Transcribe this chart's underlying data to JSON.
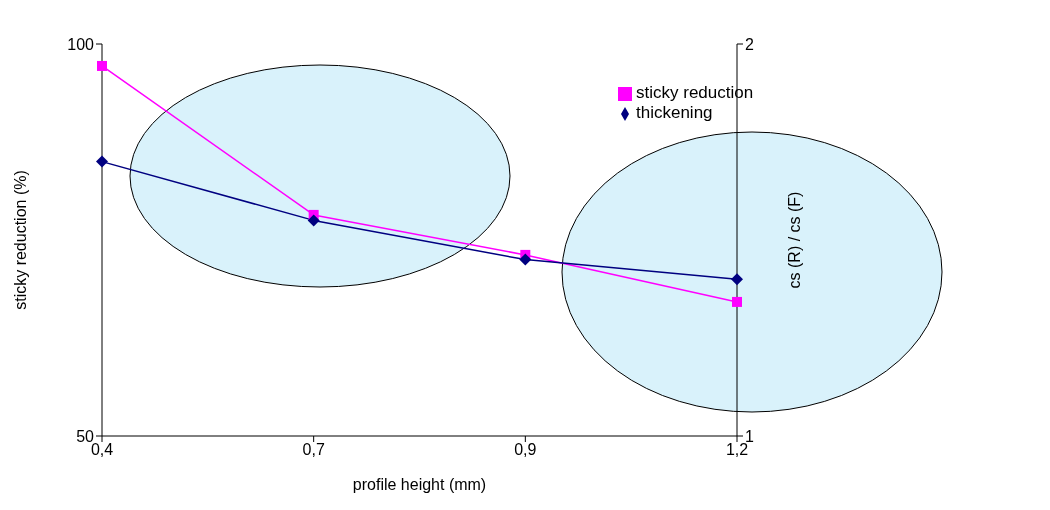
{
  "chart_data": {
    "type": "line",
    "xlabel": "profile height (mm)",
    "ylabel": "sticky reduction (%)",
    "y2label": "cs (R) / cs (F)",
    "categories": [
      "0,4",
      "0,7",
      "0,9",
      "1,2"
    ],
    "series": [
      {
        "name": "sticky reduction",
        "color": "#ff00ff",
        "marker": "square",
        "values": [
          97.2,
          78.2,
          73.1,
          67.1
        ]
      },
      {
        "name": "thickening",
        "color": "#000080",
        "marker": "diamond",
        "axis": "y2",
        "values": [
          1.7,
          1.55,
          1.45,
          1.4
        ]
      }
    ],
    "ylim": [
      50,
      100
    ],
    "yticks": [
      50,
      100
    ],
    "y2lim": [
      1,
      2
    ],
    "y2ticks": [
      1,
      2
    ],
    "grid": false,
    "legend": "top right",
    "line_style": "solid"
  }
}
